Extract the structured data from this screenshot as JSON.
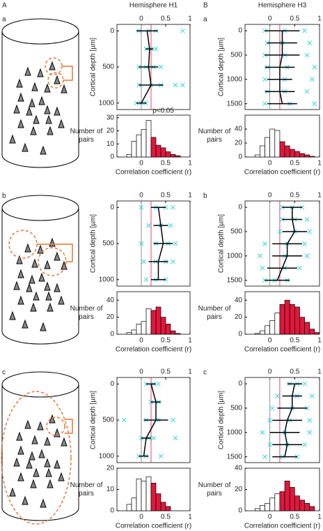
{
  "chart_data": [
    {
      "type": "profile",
      "column": "A",
      "title": "Hemisphere H1",
      "panel": "a",
      "ylabel": "Cortical depth [µm]",
      "xlim": [
        -0.5,
        1
      ],
      "xticks": [
        0,
        0.5,
        1
      ],
      "ylim": [
        -90,
        1090
      ],
      "yticks": [
        0,
        500,
        1000
      ],
      "threshold": 0.2,
      "threshold_color": "#e0173c",
      "points": {
        "color": "#33d6e0",
        "x": [
          -0.05,
          0.15,
          0.3,
          0.85,
          0.1,
          0.2,
          0.3,
          -0.05,
          0.1,
          0.25,
          0.4,
          -0.05,
          0.2,
          0.4,
          0.7,
          0.85,
          -0.1,
          0.0,
          0.1
        ],
        "y": [
          0,
          0,
          0,
          0,
          250,
          250,
          250,
          500,
          500,
          500,
          500,
          750,
          750,
          750,
          750,
          750,
          1000,
          1000,
          1000
        ]
      },
      "mean": {
        "color": "#000000",
        "x": [
          0.12,
          0.17,
          0.15,
          0.2,
          0.0
        ],
        "y": [
          0,
          250,
          500,
          750,
          1000
        ],
        "xerr": [
          0.22,
          0.08,
          0.2,
          0.25,
          0.1
        ]
      }
    },
    {
      "type": "histogram",
      "ylabel": "Number of pairs",
      "xlabel": "Correlation coefficient (r)",
      "annotation": "p<0.05",
      "xlim": [
        -0.5,
        1
      ],
      "xticks": [
        0,
        0.5,
        1
      ],
      "ylim": [
        0,
        32
      ],
      "yticks": [
        0,
        10,
        20,
        30
      ],
      "threshold": 0.2,
      "color": "#e0173c",
      "bins": [
        -0.3,
        -0.2,
        -0.1,
        0,
        0.1,
        0.2,
        0.3,
        0.4,
        0.5,
        0.6,
        0.7,
        0.8
      ],
      "values": [
        2,
        12,
        17,
        21,
        28,
        15,
        9,
        7,
        4,
        2,
        1
      ]
    },
    {
      "type": "profile",
      "column": "B",
      "title": "Hemisphere H3",
      "panel": "a",
      "ylabel": "Cortical depth [µm]",
      "xlim": [
        -0.5,
        1
      ],
      "xticks": [
        0,
        0.5,
        1
      ],
      "ylim": [
        -130,
        1620
      ],
      "yticks": [
        0,
        500,
        1000,
        1500
      ],
      "threshold": 0.2,
      "threshold_color": "#e0173c",
      "points": {
        "color": "#33d6e0",
        "x": [
          -0.1,
          0.3,
          0.7,
          -0.05,
          0.25,
          0.8,
          -0.1,
          0.3,
          0.75,
          -0.05,
          0.35,
          0.9,
          -0.1,
          0.3,
          0.85,
          -0.05,
          0.3,
          0.75,
          -0.1,
          0.4,
          0.9
        ],
        "y": [
          0,
          0,
          0,
          250,
          250,
          250,
          500,
          500,
          500,
          750,
          750,
          750,
          1000,
          1000,
          1000,
          1250,
          1250,
          1250,
          1500,
          1500,
          1500
        ]
      },
      "mean": {
        "color": "#000000",
        "x": [
          0.25,
          0.25,
          0.25,
          0.2,
          0.2,
          0.2,
          0.25
        ],
        "y": [
          0,
          250,
          500,
          750,
          1000,
          1250,
          1500
        ],
        "xerr": [
          0.35,
          0.3,
          0.35,
          0.3,
          0.25,
          0.3,
          0.3
        ]
      }
    },
    {
      "type": "histogram",
      "ylabel": "Number of pairs",
      "xlabel": "Correlation coefficient (r)",
      "xlim": [
        -0.5,
        1
      ],
      "xticks": [
        0,
        0.5,
        1
      ],
      "ylim": [
        0,
        60
      ],
      "yticks": [
        0,
        20,
        40
      ],
      "threshold": 0.2,
      "color": "#e0173c",
      "bins": [
        -0.3,
        -0.2,
        -0.1,
        0,
        0.1,
        0.2,
        0.3,
        0.4,
        0.5,
        0.6,
        0.7,
        0.8,
        0.9
      ],
      "values": [
        3,
        16,
        28,
        40,
        38,
        22,
        16,
        11,
        8,
        5,
        3,
        1
      ]
    },
    {
      "type": "profile",
      "panel": "b",
      "ylabel": "Cortical depth [µm]",
      "xlim": [
        -0.5,
        1
      ],
      "xticks": [
        0,
        0.5,
        1
      ],
      "ylim": [
        -90,
        1090
      ],
      "yticks": [
        0,
        500,
        1000
      ],
      "threshold": 0.2,
      "threshold_color": "#e0173c",
      "points": {
        "color": "#33d6e0",
        "x": [
          0.0,
          0.3,
          0.5,
          0.65,
          0.15,
          0.4,
          0.6,
          0.0,
          0.3,
          0.55,
          0.7,
          0.05,
          0.3,
          0.5,
          0.65,
          0.1,
          0.3,
          0.5
        ],
        "y": [
          0,
          0,
          0,
          0,
          250,
          250,
          250,
          500,
          500,
          500,
          500,
          750,
          750,
          750,
          750,
          1000,
          1000,
          1000
        ]
      },
      "mean": {
        "color": "#000000",
        "x": [
          0.35,
          0.4,
          0.45,
          0.35,
          0.35
        ],
        "y": [
          0,
          250,
          500,
          750,
          1000
        ],
        "xerr": [
          0.15,
          0.15,
          0.2,
          0.2,
          0.15
        ]
      }
    },
    {
      "type": "histogram",
      "ylabel": "Number of pairs",
      "xlabel": "Correlation coefficient (r)",
      "xlim": [
        -0.5,
        1
      ],
      "xticks": [
        0,
        0.5,
        1
      ],
      "ylim": [
        0,
        50
      ],
      "yticks": [
        0,
        20,
        40
      ],
      "threshold": 0.2,
      "color": "#e0173c",
      "bins": [
        -0.3,
        -0.2,
        -0.1,
        0,
        0.1,
        0.2,
        0.3,
        0.4,
        0.5,
        0.6,
        0.7,
        0.8
      ],
      "values": [
        2,
        5,
        12,
        15,
        30,
        28,
        32,
        20,
        12,
        4,
        1
      ]
    },
    {
      "type": "profile",
      "panel": "b",
      "ylabel": "Cortical depth [µm]",
      "xlim": [
        -0.5,
        1
      ],
      "xticks": [
        0,
        0.5,
        1
      ],
      "ylim": [
        -130,
        1620
      ],
      "yticks": [
        0,
        500,
        1000,
        1500
      ],
      "threshold": 0.2,
      "threshold_color": "#e0173c",
      "points": {
        "color": "#33d6e0",
        "x": [
          0.25,
          0.45,
          0.65,
          0.25,
          0.5,
          0.75,
          0.2,
          0.5,
          0.8,
          -0.1,
          0.35,
          0.7,
          -0.2,
          0.3,
          0.75,
          -0.15,
          0.3,
          0.6,
          -0.1,
          0.1,
          0.35
        ],
        "y": [
          0,
          0,
          0,
          250,
          250,
          250,
          500,
          500,
          500,
          750,
          750,
          750,
          1000,
          1000,
          1000,
          1250,
          1250,
          1250,
          1500,
          1500,
          1500
        ]
      },
      "mean": {
        "color": "#000000",
        "x": [
          0.45,
          0.45,
          0.5,
          0.35,
          0.35,
          0.25,
          0.15
        ],
        "y": [
          0,
          250,
          500,
          750,
          1000,
          1250,
          1500
        ],
        "xerr": [
          0.2,
          0.2,
          0.25,
          0.3,
          0.3,
          0.3,
          0.25
        ]
      }
    },
    {
      "type": "histogram",
      "ylabel": "Number of pairs",
      "xlabel": "Correlation coefficient (r)",
      "xlim": [
        -0.5,
        1
      ],
      "xticks": [
        0,
        0.5,
        1
      ],
      "ylim": [
        0,
        50
      ],
      "yticks": [
        0,
        20,
        40
      ],
      "threshold": 0.2,
      "color": "#e0173c",
      "bins": [
        -0.3,
        -0.2,
        -0.1,
        0,
        0.1,
        0.2,
        0.3,
        0.4,
        0.5,
        0.6,
        0.7,
        0.8,
        0.9,
        1
      ],
      "values": [
        1,
        4,
        10,
        16,
        25,
        35,
        40,
        35,
        32,
        20,
        14,
        6,
        2
      ]
    },
    {
      "type": "profile",
      "panel": "c",
      "ylabel": "Cortical depth [µm]",
      "xlim": [
        -0.5,
        1
      ],
      "xticks": [
        0,
        0.5,
        1
      ],
      "ylim": [
        -90,
        1090
      ],
      "yticks": [
        0,
        500,
        1000
      ],
      "threshold": 0.2,
      "threshold_color": "#e0173c",
      "points": {
        "color": "#33d6e0",
        "x": [
          0.1,
          0.25,
          0.35,
          0.2,
          0.35,
          -0.35,
          0.1,
          0.35,
          0.65,
          0.0,
          0.15,
          0.25,
          0.7,
          -0.05,
          0.1,
          0.4
        ],
        "y": [
          0,
          0,
          0,
          250,
          250,
          500,
          500,
          500,
          500,
          750,
          750,
          750,
          750,
          1000,
          1000,
          1000
        ]
      },
      "mean": {
        "color": "#000000",
        "x": [
          0.2,
          0.3,
          0.3,
          0.1,
          0.05
        ],
        "y": [
          0,
          250,
          500,
          750,
          1000
        ],
        "xerr": [
          0.1,
          0.1,
          0.25,
          0.1,
          0.1
        ]
      }
    },
    {
      "type": "histogram",
      "ylabel": "Number of pairs",
      "xlabel": "Correlation coefficient (r)",
      "xlim": [
        -0.5,
        1
      ],
      "xticks": [
        0,
        0.5,
        1
      ],
      "ylim": [
        0,
        20
      ],
      "yticks": [
        0,
        10,
        20
      ],
      "threshold": 0.2,
      "color": "#e0173c",
      "bins": [
        -0.3,
        -0.2,
        -0.1,
        0,
        0.1,
        0.2,
        0.3,
        0.4,
        0.5,
        0.6
      ],
      "values": [
        3,
        6,
        15,
        14,
        16,
        13,
        8,
        4,
        2
      ]
    },
    {
      "type": "profile",
      "panel": "c",
      "ylabel": "Cortical depth [µm]",
      "xlim": [
        -0.5,
        1
      ],
      "xticks": [
        0,
        0.5,
        1
      ],
      "ylim": [
        -130,
        1620
      ],
      "yticks": [
        0,
        500,
        1000,
        1500
      ],
      "threshold": 0.2,
      "threshold_color": "#e0173c",
      "points": {
        "color": "#33d6e0",
        "x": [
          0.4,
          0.55,
          0.7,
          0.15,
          0.55,
          0.85,
          0.05,
          0.45,
          0.75,
          0.0,
          0.4,
          0.8,
          -0.15,
          0.3,
          0.8,
          0.0,
          0.35,
          0.7,
          -0.1,
          0.25,
          0.55
        ],
        "y": [
          0,
          0,
          0,
          250,
          250,
          250,
          500,
          500,
          500,
          750,
          750,
          750,
          1000,
          1000,
          1000,
          1250,
          1250,
          1250,
          1500,
          1500,
          1500
        ]
      },
      "mean": {
        "color": "#000000",
        "x": [
          0.5,
          0.45,
          0.45,
          0.35,
          0.3,
          0.35,
          0.3
        ],
        "y": [
          0,
          250,
          500,
          750,
          1000,
          1250,
          1500
        ],
        "xerr": [
          0.15,
          0.2,
          0.3,
          0.3,
          0.3,
          0.3,
          0.25
        ]
      }
    },
    {
      "type": "histogram",
      "ylabel": "Number of pairs",
      "xlabel": "Correlation coefficient (r)",
      "xlim": [
        -0.5,
        1
      ],
      "xticks": [
        0,
        0.5,
        1
      ],
      "ylim": [
        0,
        40
      ],
      "yticks": [
        0,
        20,
        40
      ],
      "threshold": 0.2,
      "color": "#e0173c",
      "bins": [
        -0.3,
        -0.2,
        -0.1,
        0,
        0.1,
        0.2,
        0.3,
        0.4,
        0.5,
        0.6,
        0.7,
        0.8,
        0.9
      ],
      "values": [
        2,
        5,
        7,
        12,
        16,
        18,
        28,
        22,
        14,
        10,
        7,
        4
      ]
    }
  ]
}
